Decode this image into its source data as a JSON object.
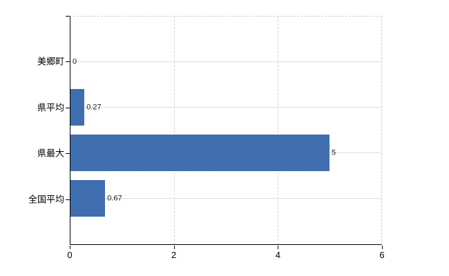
{
  "chart_data": {
    "type": "bar",
    "orientation": "horizontal",
    "title": "",
    "xlabel": "",
    "ylabel": "",
    "categories": [
      "美郷町",
      "県平均",
      "県最大",
      "全国平均"
    ],
    "values": [
      0,
      0.27,
      5,
      0.67
    ],
    "value_labels": [
      "0",
      "0.27",
      "5",
      "0.67"
    ],
    "xlim": [
      0,
      6
    ],
    "x_ticks": [
      0,
      2,
      4,
      6
    ],
    "x_tick_labels": [
      "0",
      "2",
      "4",
      "6"
    ],
    "grid": true,
    "legend": false,
    "colors": {
      "bar": "#3e6dab",
      "bar_dither_light": "#4e7bbd",
      "bar_dither_dark": "#31619f",
      "axis": "#000000",
      "gridline_h": "#d9e0d4",
      "gridline_v": "#d4d4d4",
      "border_dashed": "#cccccc",
      "value_label": "#1a1a1a",
      "tick_label": "#000000"
    }
  }
}
